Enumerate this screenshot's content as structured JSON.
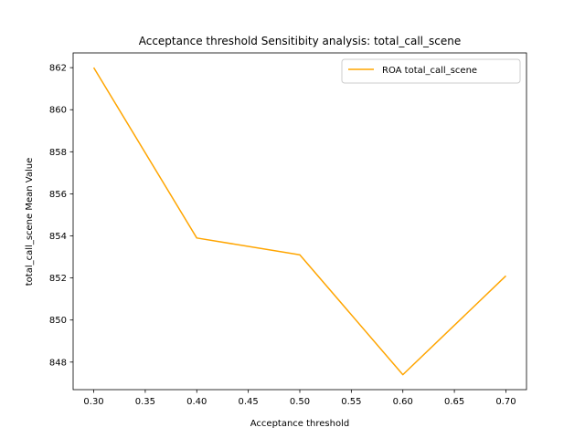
{
  "chart_data": {
    "type": "line",
    "title": "Acceptance threshold Sensitibity analysis: total_call_scene",
    "xlabel": "Acceptance threshold",
    "ylabel": "total_call_scene Mean Value",
    "x": [
      0.3,
      0.4,
      0.5,
      0.6,
      0.7
    ],
    "series": [
      {
        "name": "ROA total_call_scene",
        "values": [
          862.0,
          853.9,
          853.1,
          847.4,
          852.1
        ],
        "color": "#ffa500"
      }
    ],
    "xticks": [
      "0.30",
      "0.35",
      "0.40",
      "0.45",
      "0.50",
      "0.55",
      "0.60",
      "0.65",
      "0.70"
    ],
    "yticks": [
      "848",
      "850",
      "852",
      "854",
      "856",
      "858",
      "860",
      "862"
    ],
    "xlim": [
      0.28,
      0.72
    ],
    "ylim": [
      846.69,
      862.7
    ],
    "grid": false,
    "legend": "top-right"
  }
}
